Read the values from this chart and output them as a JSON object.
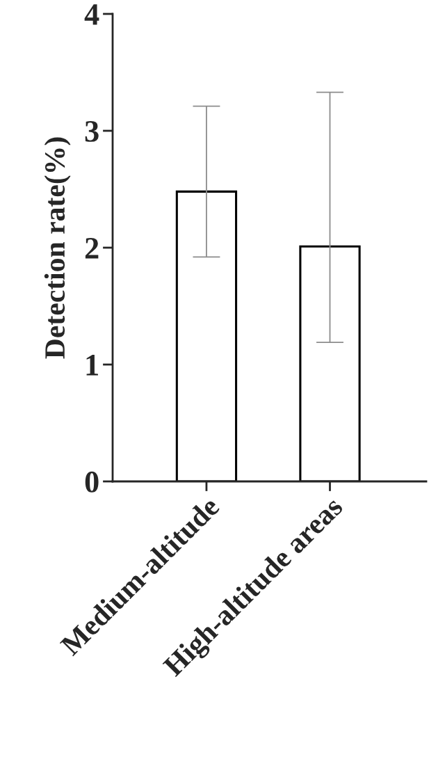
{
  "chart_data": {
    "type": "bar",
    "ylabel": "Detection rate(%)",
    "categories": [
      "Medium-altitude",
      "High-altitude areas"
    ],
    "values": [
      2.48,
      2.01
    ],
    "errors": [
      [
        1.92,
        3.21
      ],
      [
        1.19,
        3.33
      ]
    ],
    "color": "#ffffff",
    "ylim": [
      0,
      4
    ],
    "yticks": [
      0,
      1,
      2,
      3,
      4
    ],
    "grid": false
  }
}
